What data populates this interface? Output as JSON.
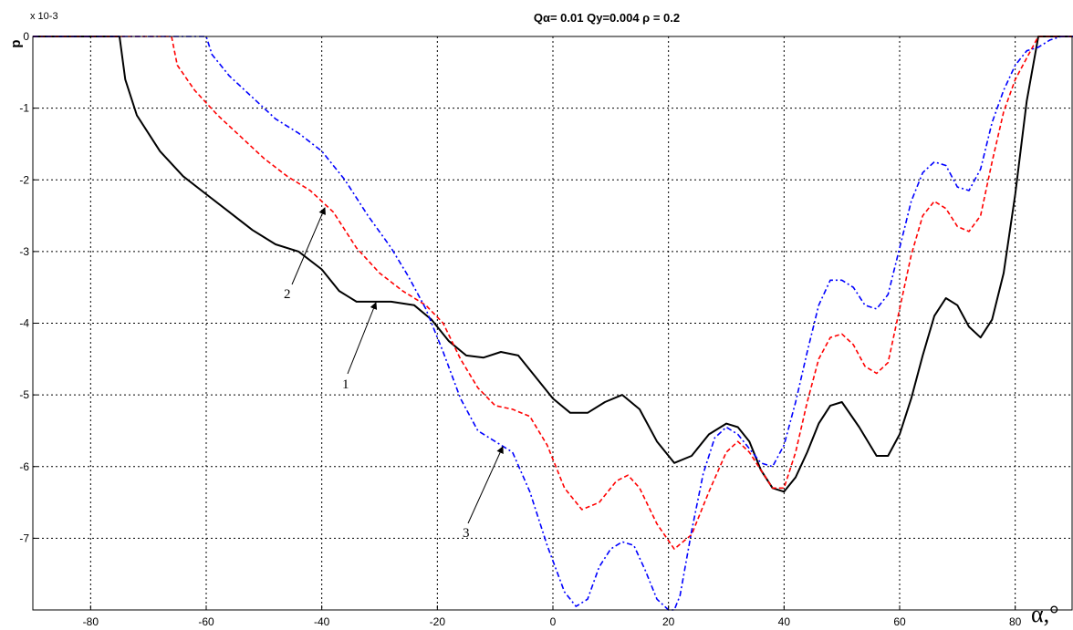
{
  "chart_data": {
    "type": "line",
    "title": "Qα= 0.01   Qy=0.004   ρ = 0.2",
    "xlabel": "α,°",
    "ylabel": "p",
    "y_multiplier": "x 10-3",
    "xlim": [
      -90,
      90
    ],
    "ylim": [
      -8,
      0
    ],
    "x_ticks": [
      -80,
      -60,
      -40,
      -20,
      0,
      20,
      40,
      60,
      80
    ],
    "y_ticks": [
      0,
      -1,
      -2,
      -3,
      -4,
      -5,
      -6,
      -7
    ],
    "grid": true,
    "legend": "none",
    "series": [
      {
        "color": "#000000",
        "style": "solid",
        "x": [
          -90,
          -75,
          -74,
          -72,
          -68,
          -64,
          -60,
          -56,
          -52,
          -48,
          -44,
          -40,
          -37,
          -34,
          -31,
          -28,
          -24,
          -21,
          -18,
          -15,
          -12,
          -9,
          -6,
          -3,
          0,
          3,
          6,
          9,
          12,
          15,
          18,
          21,
          24,
          27,
          30,
          32,
          34,
          36,
          38,
          40,
          42,
          44,
          46,
          48,
          50,
          53,
          56,
          58,
          60,
          62,
          64,
          66,
          68,
          70,
          72,
          74,
          76,
          78,
          80,
          82,
          84,
          86,
          90
        ],
        "values": [
          0,
          0,
          -0.6,
          -1.1,
          -1.6,
          -1.95,
          -2.2,
          -2.45,
          -2.7,
          -2.9,
          -3.0,
          -3.25,
          -3.55,
          -3.7,
          -3.7,
          -3.7,
          -3.75,
          -3.95,
          -4.25,
          -4.45,
          -4.48,
          -4.4,
          -4.45,
          -4.75,
          -5.05,
          -5.25,
          -5.25,
          -5.1,
          -5.0,
          -5.2,
          -5.65,
          -5.95,
          -5.85,
          -5.55,
          -5.4,
          -5.45,
          -5.65,
          -6.05,
          -6.3,
          -6.35,
          -6.15,
          -5.8,
          -5.4,
          -5.15,
          -5.1,
          -5.45,
          -5.85,
          -5.85,
          -5.55,
          -5.05,
          -4.45,
          -3.9,
          -3.65,
          -3.75,
          -4.05,
          -4.2,
          -3.95,
          -3.3,
          -2.2,
          -0.9,
          0,
          0,
          0
        ]
      },
      {
        "color": "#ff0000",
        "style": "dashed",
        "x": [
          -90,
          -66,
          -65,
          -62,
          -58,
          -54,
          -50,
          -46,
          -42,
          -38,
          -34,
          -30,
          -26,
          -22,
          -19,
          -16,
          -13,
          -10,
          -7,
          -4,
          -1,
          2,
          5,
          8,
          11,
          13,
          15,
          18,
          21,
          24,
          27,
          30,
          32,
          34,
          36,
          38,
          40,
          42,
          44,
          46,
          48,
          50,
          52,
          54,
          56,
          58,
          60,
          62,
          64,
          66,
          68,
          70,
          72,
          74,
          76,
          78,
          80,
          82,
          84,
          86,
          90
        ],
        "values": [
          0,
          0,
          -0.4,
          -0.75,
          -1.1,
          -1.4,
          -1.7,
          -1.95,
          -2.15,
          -2.45,
          -2.95,
          -3.3,
          -3.55,
          -3.75,
          -4.0,
          -4.5,
          -4.9,
          -5.15,
          -5.2,
          -5.3,
          -5.7,
          -6.3,
          -6.6,
          -6.5,
          -6.2,
          -6.12,
          -6.3,
          -6.8,
          -7.15,
          -6.95,
          -6.35,
          -5.8,
          -5.65,
          -5.8,
          -6.05,
          -6.3,
          -6.3,
          -5.8,
          -5.1,
          -4.5,
          -4.2,
          -4.15,
          -4.3,
          -4.6,
          -4.7,
          -4.55,
          -3.8,
          -3.05,
          -2.5,
          -2.3,
          -2.4,
          -2.65,
          -2.72,
          -2.5,
          -1.75,
          -1.05,
          -0.6,
          -0.3,
          0,
          0,
          0
        ]
      },
      {
        "color": "#0000ff",
        "style": "dashdot",
        "x": [
          -90,
          -60,
          -59,
          -56,
          -52,
          -48,
          -44,
          -40,
          -36,
          -32,
          -28,
          -25,
          -22,
          -19,
          -16,
          -13,
          -10,
          -7,
          -4,
          -1,
          2,
          4,
          6,
          8,
          10,
          12,
          14,
          16,
          18,
          20,
          21,
          22,
          24,
          26,
          28,
          30,
          32,
          34,
          36,
          38,
          40,
          42,
          44,
          46,
          48,
          50,
          52,
          54,
          56,
          58,
          60,
          62,
          64,
          66,
          68,
          70,
          72,
          74,
          76,
          78,
          80,
          82,
          84,
          86,
          88,
          90
        ],
        "values": [
          0,
          0,
          -0.25,
          -0.55,
          -0.85,
          -1.15,
          -1.35,
          -1.6,
          -2.0,
          -2.5,
          -2.95,
          -3.35,
          -3.8,
          -4.4,
          -5.05,
          -5.5,
          -5.65,
          -5.8,
          -6.35,
          -7.1,
          -7.75,
          -7.95,
          -7.85,
          -7.4,
          -7.15,
          -7.05,
          -7.1,
          -7.45,
          -7.85,
          -8.0,
          -8.0,
          -7.8,
          -6.9,
          -6.1,
          -5.6,
          -5.45,
          -5.55,
          -5.75,
          -5.95,
          -6.0,
          -5.7,
          -5.1,
          -4.4,
          -3.75,
          -3.4,
          -3.4,
          -3.5,
          -3.75,
          -3.8,
          -3.6,
          -2.95,
          -2.3,
          -1.9,
          -1.75,
          -1.8,
          -2.1,
          -2.15,
          -1.85,
          -1.2,
          -0.75,
          -0.4,
          -0.2,
          -0.15,
          -0.05,
          0,
          0
        ]
      }
    ],
    "annotations": [
      "1",
      "2",
      "3"
    ]
  }
}
